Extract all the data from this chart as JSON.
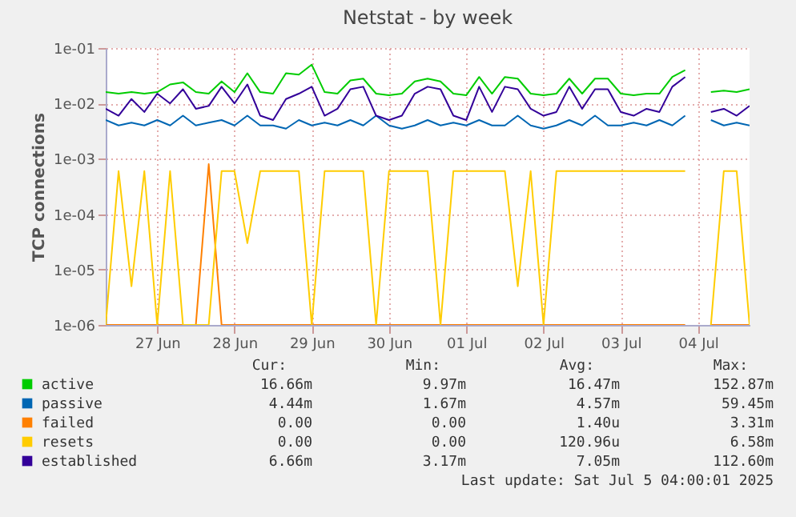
{
  "chart_data": {
    "type": "line",
    "title": "Netstat - by week",
    "ylabel": "TCP connections",
    "x": [
      "2025-06-26T20:00",
      "2025-06-27T00:00",
      "2025-06-27T04:00",
      "2025-06-27T08:00",
      "2025-06-27T12:00",
      "2025-06-27T16:00",
      "2025-06-27T20:00",
      "2025-06-28T00:00",
      "2025-06-28T04:00",
      "2025-06-28T08:00",
      "2025-06-28T12:00",
      "2025-06-28T16:00",
      "2025-06-28T20:00",
      "2025-06-29T00:00",
      "2025-06-29T04:00",
      "2025-06-29T08:00",
      "2025-06-29T12:00",
      "2025-06-29T16:00",
      "2025-06-29T20:00",
      "2025-06-30T00:00",
      "2025-06-30T04:00",
      "2025-06-30T08:00",
      "2025-06-30T12:00",
      "2025-06-30T16:00",
      "2025-06-30T20:00",
      "2025-07-01T00:00",
      "2025-07-01T04:00",
      "2025-07-01T08:00",
      "2025-07-01T12:00",
      "2025-07-01T16:00",
      "2025-07-01T20:00",
      "2025-07-02T00:00",
      "2025-07-02T04:00",
      "2025-07-02T08:00",
      "2025-07-02T12:00",
      "2025-07-02T16:00",
      "2025-07-02T20:00",
      "2025-07-03T00:00",
      "2025-07-03T04:00",
      "2025-07-03T08:00",
      "2025-07-03T12:00",
      "2025-07-03T16:00",
      "2025-07-03T20:00",
      "2025-07-04T00:00",
      "2025-07-04T04:00",
      "2025-07-04T08:00",
      "2025-07-04T12:00",
      "2025-07-04T16:00",
      "2025-07-04T20:00",
      "2025-07-05T00:00",
      "2025-07-05T04:00"
    ],
    "series": [
      {
        "name": "active",
        "color": "#00cc00",
        "values": [
          0.016,
          0.015,
          0.016,
          0.015,
          0.016,
          0.022,
          0.024,
          0.016,
          0.015,
          0.025,
          0.016,
          0.035,
          0.016,
          0.015,
          0.035,
          0.033,
          0.05,
          0.016,
          0.015,
          0.026,
          0.028,
          0.015,
          0.014,
          0.015,
          0.025,
          0.028,
          0.025,
          0.015,
          0.014,
          0.03,
          0.015,
          0.03,
          0.028,
          0.015,
          0.014,
          0.015,
          0.028,
          0.015,
          0.028,
          0.028,
          0.015,
          0.014,
          0.015,
          0.015,
          0.03,
          0.04,
          null,
          0.016,
          0.017,
          0.016,
          0.018
        ]
      },
      {
        "name": "passive",
        "color": "#0066b3",
        "values": [
          0.005,
          0.004,
          0.0045,
          0.004,
          0.005,
          0.004,
          0.006,
          0.004,
          0.0045,
          0.005,
          0.004,
          0.006,
          0.004,
          0.004,
          0.0035,
          0.005,
          0.004,
          0.0045,
          0.004,
          0.005,
          0.004,
          0.006,
          0.004,
          0.0035,
          0.004,
          0.005,
          0.004,
          0.0045,
          0.004,
          0.005,
          0.004,
          0.004,
          0.006,
          0.004,
          0.0035,
          0.004,
          0.005,
          0.004,
          0.006,
          0.004,
          0.004,
          0.0045,
          0.004,
          0.005,
          0.004,
          0.006,
          null,
          0.005,
          0.004,
          0.0045,
          0.004
        ]
      },
      {
        "name": "failed",
        "color": "#ff8000",
        "values": [
          1e-06,
          1e-06,
          1e-06,
          1e-06,
          1e-06,
          1e-06,
          1e-06,
          1e-06,
          0.0008,
          1e-06,
          1e-06,
          1e-06,
          1e-06,
          1e-06,
          1e-06,
          1e-06,
          1e-06,
          1e-06,
          1e-06,
          1e-06,
          1e-06,
          1e-06,
          1e-06,
          1e-06,
          1e-06,
          1e-06,
          1e-06,
          1e-06,
          1e-06,
          1e-06,
          1e-06,
          1e-06,
          1e-06,
          1e-06,
          1e-06,
          1e-06,
          1e-06,
          1e-06,
          1e-06,
          1e-06,
          1e-06,
          1e-06,
          1e-06,
          1e-06,
          1e-06,
          1e-06,
          null,
          1e-06,
          1e-06,
          1e-06,
          1e-06
        ]
      },
      {
        "name": "resets",
        "color": "#ffcc00",
        "values": [
          1e-06,
          0.0006,
          5e-06,
          0.0006,
          1e-06,
          0.0006,
          1e-06,
          1e-06,
          1e-06,
          0.0006,
          0.0006,
          3e-05,
          0.0006,
          0.0006,
          0.0006,
          0.0006,
          1e-06,
          0.0006,
          0.0006,
          0.0006,
          0.0006,
          1e-06,
          0.0006,
          0.0006,
          0.0006,
          0.0006,
          1e-06,
          0.0006,
          0.0006,
          0.0006,
          0.0006,
          0.0006,
          5e-06,
          0.0006,
          1e-06,
          0.0006,
          0.0006,
          0.0006,
          0.0006,
          0.0006,
          0.0006,
          0.0006,
          0.0006,
          0.0006,
          0.0006,
          0.0006,
          null,
          1e-06,
          0.0006,
          0.0006,
          1e-06
        ]
      },
      {
        "name": "established",
        "color": "#330099",
        "values": [
          0.008,
          0.006,
          0.012,
          0.007,
          0.015,
          0.01,
          0.018,
          0.008,
          0.009,
          0.02,
          0.01,
          0.022,
          0.006,
          0.005,
          0.012,
          0.015,
          0.02,
          0.006,
          0.008,
          0.018,
          0.02,
          0.006,
          0.005,
          0.006,
          0.015,
          0.02,
          0.018,
          0.006,
          0.005,
          0.02,
          0.007,
          0.02,
          0.018,
          0.008,
          0.006,
          0.007,
          0.02,
          0.008,
          0.018,
          0.018,
          0.007,
          0.006,
          0.008,
          0.007,
          0.02,
          0.03,
          null,
          0.007,
          0.008,
          0.006,
          0.009
        ]
      }
    ],
    "xlim": [
      "2025-06-26T20:00",
      "2025-07-05T04:00"
    ],
    "xticks": [
      {
        "value": "2025-06-27T12:00",
        "label": "27 Jun"
      },
      {
        "value": "2025-06-28T12:00",
        "label": "28 Jun"
      },
      {
        "value": "2025-06-29T12:00",
        "label": "29 Jun"
      },
      {
        "value": "2025-06-30T12:00",
        "label": "30 Jun"
      },
      {
        "value": "2025-07-01T12:00",
        "label": "01 Jul"
      },
      {
        "value": "2025-07-02T12:00",
        "label": "02 Jul"
      },
      {
        "value": "2025-07-03T12:00",
        "label": "03 Jul"
      },
      {
        "value": "2025-07-04T12:00",
        "label": "04 Jul"
      }
    ],
    "ylim": [
      1e-06,
      0.1
    ],
    "yticks": [
      {
        "value": 1e-06,
        "label": "1e-06"
      },
      {
        "value": 1e-05,
        "label": "1e-05"
      },
      {
        "value": 0.0001,
        "label": "1e-04"
      },
      {
        "value": 0.001,
        "label": "1e-03"
      },
      {
        "value": 0.01,
        "label": "1e-02"
      },
      {
        "value": 0.1,
        "label": "1e-01"
      }
    ],
    "log": "y",
    "grid": true,
    "legend": "bottom",
    "line_style": "solid",
    "marker": "none",
    "annotations": [
      "Cur:",
      "Min:",
      "Avg:",
      "Max:",
      "16.66m",
      "9.97m",
      "16.47m",
      "152.87m",
      "4.44m",
      "1.67m",
      "4.57m",
      "59.45m",
      "0.00",
      "0.00",
      "1.40u",
      "3.31m",
      "0.00",
      "0.00",
      "120.96u",
      "6.58m",
      "6.66m",
      "3.17m",
      "7.05m",
      "112.60m",
      "Last update:  Sat Jul  5 04:00:01 2025"
    ]
  }
}
